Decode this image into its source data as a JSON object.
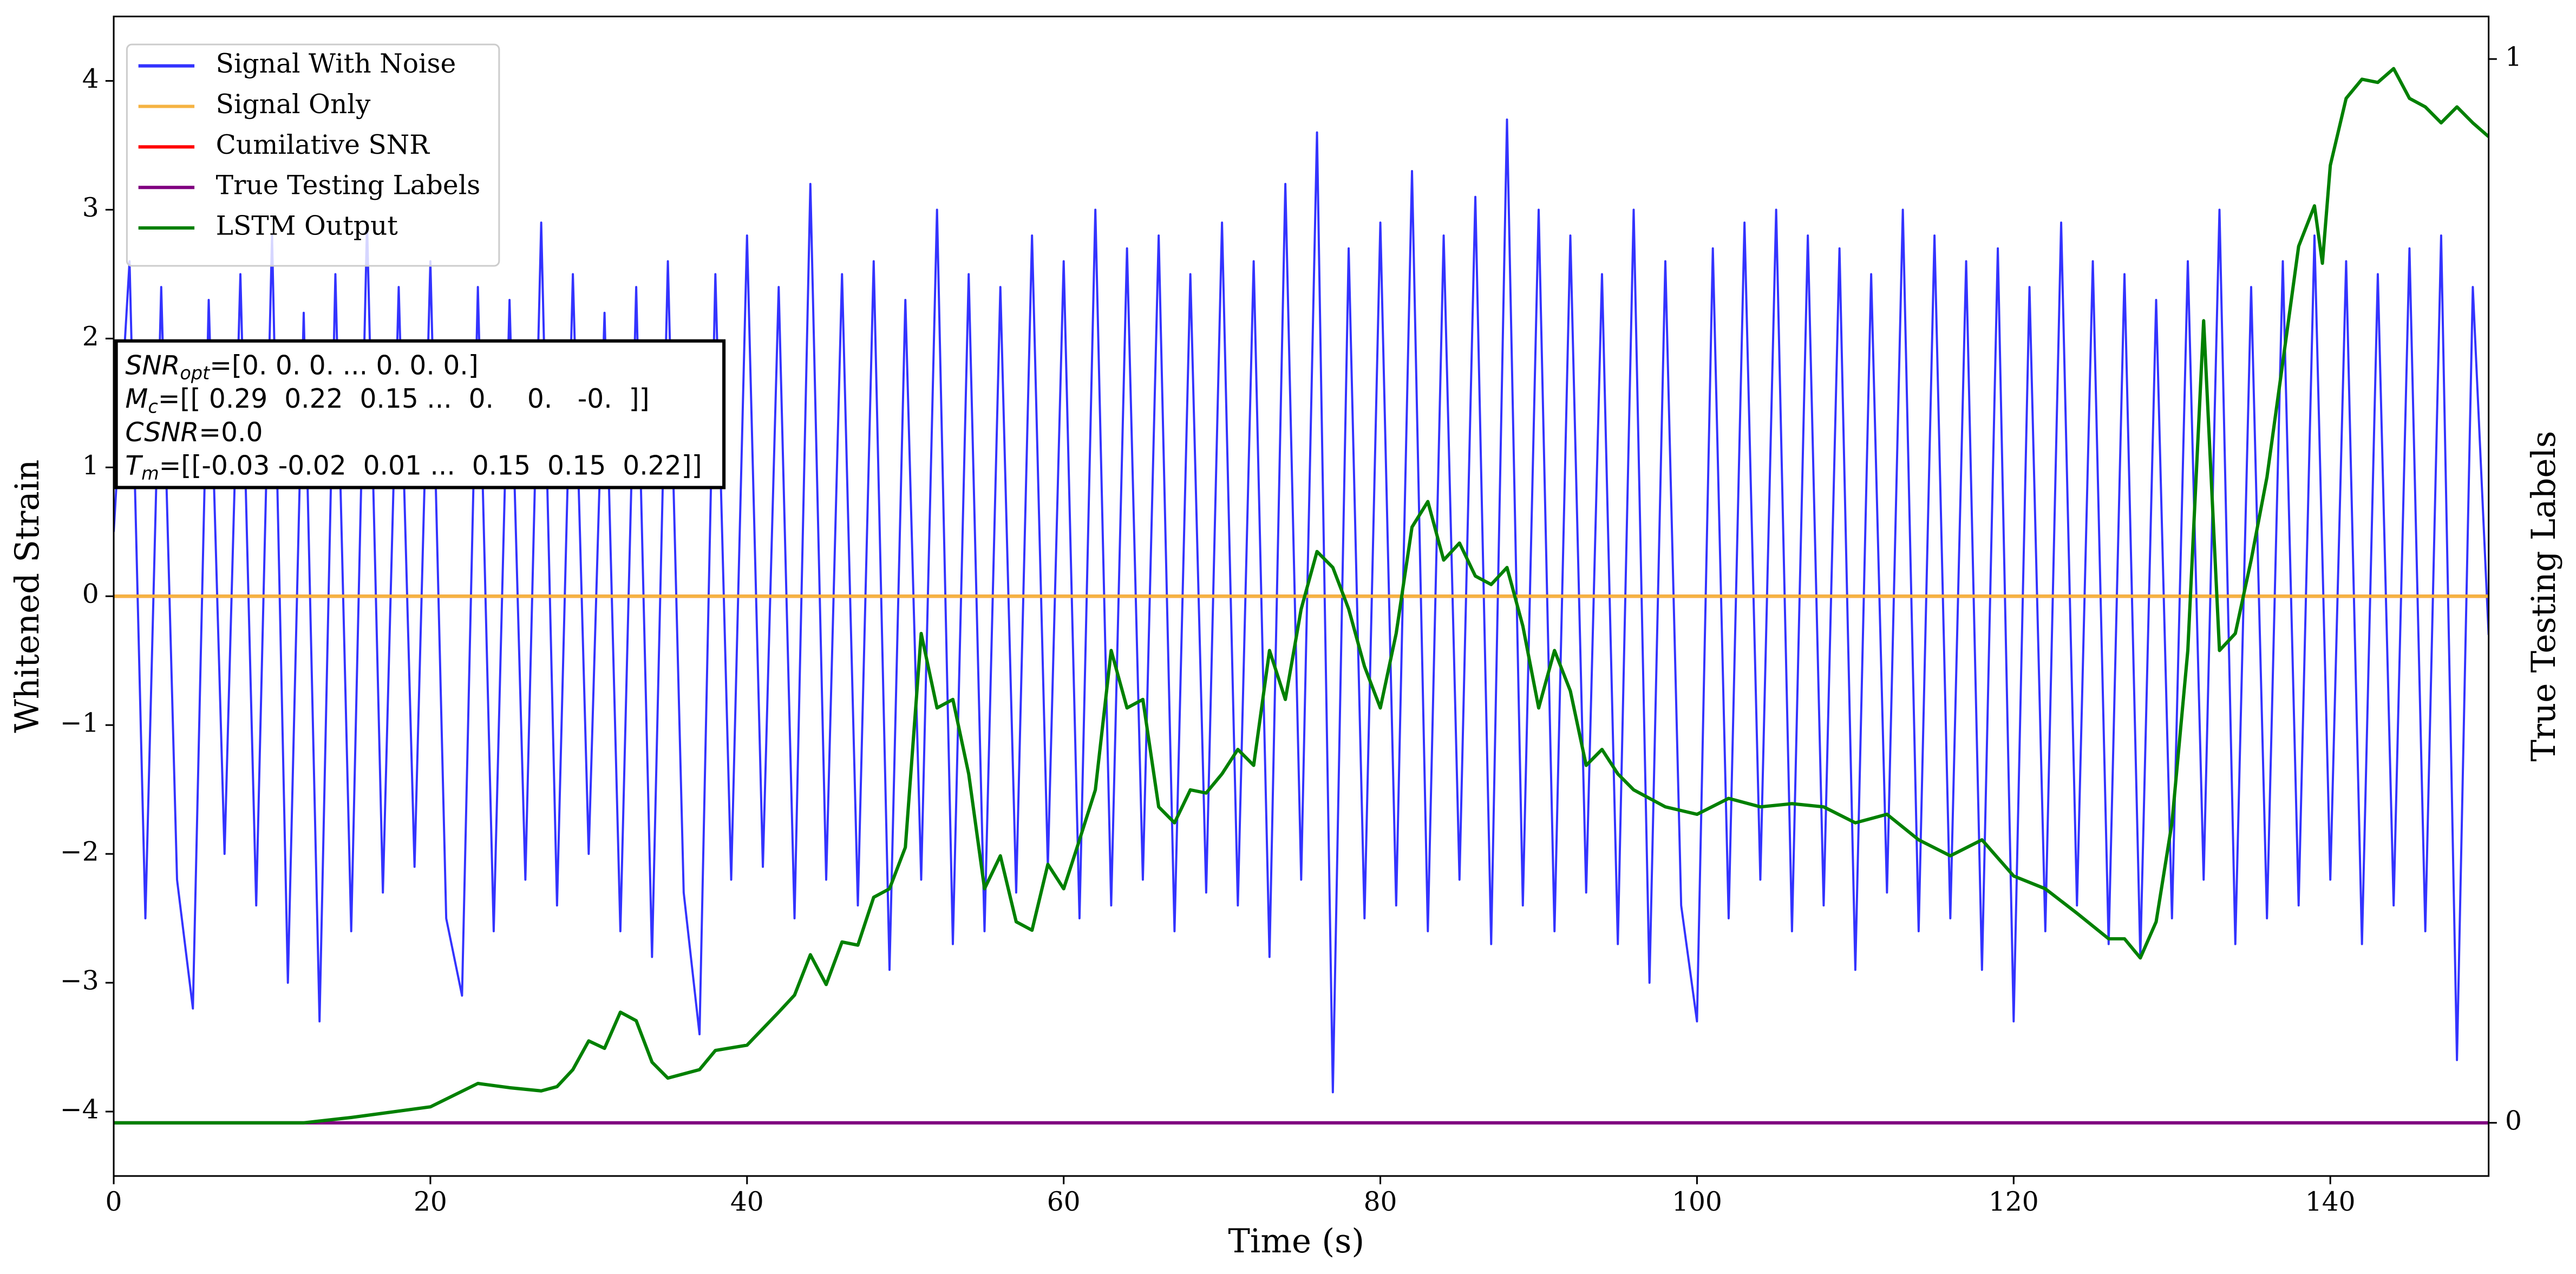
{
  "chart_data": {
    "type": "line",
    "xlabel": "Time (s)",
    "ylabel": "Whitened Strain",
    "y2label": "True Testing Labels",
    "xlim": [
      0,
      150
    ],
    "xticks": [
      0,
      20,
      40,
      60,
      80,
      100,
      120,
      140
    ],
    "ylim": [
      -4.5,
      4.5
    ],
    "yticks": [
      {
        "value": -4,
        "label": "−4"
      },
      {
        "value": -3,
        "label": "−3"
      },
      {
        "value": -2,
        "label": "−2"
      },
      {
        "value": -1,
        "label": "−1"
      },
      0,
      1,
      2,
      3,
      4
    ],
    "y2lim": [
      -0.05,
      1.04
    ],
    "y2ticks": [
      0,
      1
    ],
    "legend": "upper left",
    "annotation": [
      {
        "symbol": "SNR",
        "sub": "opt",
        "text": "=[0. 0. 0. ... 0. 0. 0.]"
      },
      {
        "symbol": "M",
        "sub": "c",
        "text": "=[[ 0.29  0.22  0.15 ...  0.    0.   -0.  ]]"
      },
      {
        "symbol": "CSNR",
        "text": "=0.0"
      },
      {
        "symbol": "T",
        "sub": "m",
        "text": "=[[-0.03 -0.02  0.01 ...  0.15  0.15  0.22]]"
      }
    ],
    "series": [
      {
        "name": "Signal With Noise",
        "color": "#3333ff",
        "x": [
          0,
          1,
          2,
          3,
          4,
          5,
          6,
          7,
          8,
          9,
          10,
          11,
          12,
          13,
          14,
          15,
          16,
          17,
          18,
          19,
          20,
          21,
          22,
          23,
          24,
          25,
          26,
          27,
          28,
          29,
          30,
          31,
          32,
          33,
          34,
          35,
          36,
          37,
          38,
          39,
          40,
          41,
          42,
          43,
          44,
          45,
          46,
          47,
          48,
          49,
          50,
          51,
          52,
          53,
          54,
          55,
          56,
          57,
          58,
          59,
          60,
          61,
          62,
          63,
          64,
          65,
          66,
          67,
          68,
          69,
          70,
          71,
          72,
          73,
          74,
          75,
          76,
          77,
          78,
          79,
          80,
          81,
          82,
          83,
          84,
          85,
          86,
          87,
          88,
          89,
          90,
          91,
          92,
          93,
          94,
          95,
          96,
          97,
          98,
          99,
          100,
          101,
          102,
          103,
          104,
          105,
          106,
          107,
          108,
          109,
          110,
          111,
          112,
          113,
          114,
          115,
          116,
          117,
          118,
          119,
          120,
          121,
          122,
          123,
          124,
          125,
          126,
          127,
          128,
          129,
          130,
          131,
          132,
          133,
          134,
          135,
          136,
          137,
          138,
          139,
          140,
          141,
          142,
          143,
          144,
          145,
          146,
          147,
          148,
          149,
          150
        ],
        "values": [
          0.5,
          2.6,
          -2.5,
          2.4,
          -2.2,
          -3.2,
          2.3,
          -2.0,
          2.5,
          -2.4,
          2.8,
          -3.0,
          2.2,
          -3.3,
          2.5,
          -2.6,
          2.9,
          -2.3,
          2.4,
          -2.1,
          2.6,
          -2.5,
          -3.1,
          2.4,
          -2.6,
          2.3,
          -2.2,
          2.9,
          -2.4,
          2.5,
          -2.0,
          2.2,
          -2.6,
          2.4,
          -2.8,
          2.6,
          -2.3,
          -3.4,
          2.5,
          -2.2,
          2.8,
          -2.1,
          2.4,
          -2.5,
          3.2,
          -2.2,
          2.5,
          -2.4,
          2.6,
          -2.9,
          2.3,
          -2.2,
          3.0,
          -2.7,
          2.5,
          -2.6,
          2.4,
          -2.3,
          2.8,
          -2.1,
          2.6,
          -2.5,
          3.0,
          -2.4,
          2.7,
          -2.2,
          2.8,
          -2.6,
          2.5,
          -2.3,
          2.9,
          -2.4,
          2.6,
          -2.8,
          3.2,
          -2.2,
          3.6,
          -3.85,
          2.7,
          -2.5,
          2.9,
          -2.4,
          3.3,
          -2.6,
          2.8,
          -2.2,
          3.1,
          -2.7,
          3.7,
          -2.4,
          3.0,
          -2.6,
          2.8,
          -2.3,
          2.5,
          -2.7,
          3.0,
          -3.0,
          2.6,
          -2.4,
          -3.3,
          2.7,
          -2.5,
          2.9,
          -2.2,
          3.0,
          -2.6,
          2.8,
          -2.4,
          2.7,
          -2.9,
          2.5,
          -2.3,
          3.0,
          -2.6,
          2.8,
          -2.5,
          2.6,
          -2.9,
          2.7,
          -3.3,
          2.4,
          -2.6,
          2.9,
          -2.4,
          2.6,
          -2.7,
          2.5,
          -2.8,
          2.3,
          -2.5,
          2.6,
          -2.2,
          3.0,
          -2.7,
          2.4,
          -2.5,
          2.6,
          -2.4,
          2.8,
          -2.2,
          2.6,
          -2.7,
          2.5,
          -2.4,
          2.7,
          -2.6,
          2.8,
          -3.6,
          2.4,
          -0.3
        ]
      },
      {
        "name": "Signal Only",
        "color": "#f5b342",
        "x": [
          0,
          150
        ],
        "values": [
          0,
          0
        ]
      },
      {
        "name": "Cumilative SNR",
        "color": "#ff0000",
        "x": [
          0,
          150
        ],
        "values": [
          0,
          0
        ]
      },
      {
        "name": "True Testing Labels",
        "color": "#800080",
        "axis": "y2",
        "x": [
          0,
          150
        ],
        "values": [
          0,
          0
        ]
      },
      {
        "name": "LSTM Output",
        "color": "#008000",
        "axis": "y2",
        "x": [
          0,
          12,
          15,
          20,
          23,
          25,
          27,
          28,
          29,
          30,
          31,
          32,
          33,
          34,
          35,
          37,
          38,
          40,
          42,
          43,
          44,
          45,
          46,
          47,
          48,
          49,
          50,
          51,
          52,
          53,
          54,
          55,
          56,
          57,
          58,
          59,
          60,
          61,
          62,
          63,
          64,
          65,
          66,
          67,
          68,
          69,
          70,
          71,
          72,
          73,
          74,
          75,
          76,
          77,
          78,
          79,
          80,
          81,
          82,
          83,
          84,
          85,
          86,
          87,
          88,
          89,
          90,
          91,
          92,
          93,
          94,
          95,
          96,
          98,
          100,
          102,
          104,
          106,
          108,
          110,
          112,
          114,
          116,
          118,
          120,
          122,
          124,
          126,
          127,
          128,
          129,
          130,
          131,
          132,
          133,
          134,
          135,
          136,
          137,
          138,
          139,
          139.5,
          140,
          141,
          142,
          143,
          144,
          145,
          146,
          147,
          148,
          149,
          150
        ],
        "values": [
          0,
          0,
          0.005,
          0.015,
          0.037,
          0.033,
          0.03,
          0.034,
          0.05,
          0.077,
          0.07,
          0.104,
          0.096,
          0.057,
          0.042,
          0.05,
          0.068,
          0.073,
          0.104,
          0.12,
          0.158,
          0.13,
          0.17,
          0.167,
          0.212,
          0.22,
          0.259,
          0.46,
          0.39,
          0.398,
          0.328,
          0.22,
          0.251,
          0.189,
          0.181,
          0.243,
          0.22,
          0.266,
          0.313,
          0.444,
          0.39,
          0.398,
          0.297,
          0.282,
          0.313,
          0.31,
          0.328,
          0.351,
          0.336,
          0.444,
          0.398,
          0.483,
          0.537,
          0.522,
          0.483,
          0.429,
          0.39,
          0.46,
          0.56,
          0.584,
          0.529,
          0.545,
          0.514,
          0.506,
          0.522,
          0.467,
          0.39,
          0.444,
          0.406,
          0.336,
          0.351,
          0.328,
          0.313,
          0.297,
          0.29,
          0.305,
          0.297,
          0.3,
          0.297,
          0.282,
          0.29,
          0.266,
          0.251,
          0.266,
          0.232,
          0.22,
          0.197,
          0.173,
          0.173,
          0.155,
          0.189,
          0.282,
          0.444,
          0.754,
          0.444,
          0.46,
          0.529,
          0.607,
          0.715,
          0.824,
          0.862,
          0.808,
          0.9,
          0.963,
          0.981,
          0.978,
          0.991,
          0.963,
          0.955,
          0.94,
          0.955,
          0.94,
          0.927
        ]
      }
    ]
  }
}
